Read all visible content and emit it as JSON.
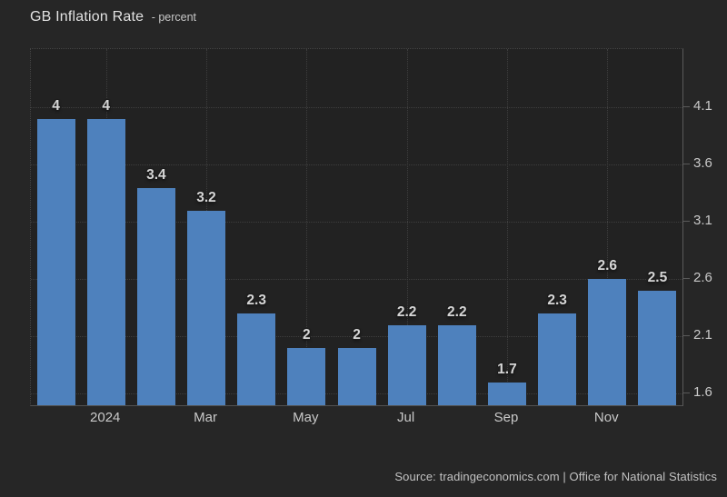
{
  "header": {
    "title": "GB Inflation Rate",
    "subtitle": "- percent"
  },
  "footer": {
    "source": "Source: tradingeconomics.com | Office for National Statistics"
  },
  "colors": {
    "page_bg": "#262626",
    "plot_bg": "#222222",
    "bar": "#4e81bd",
    "gridline": "#3e3e3e",
    "axis_line": "#5a5a5a",
    "tick_text": "#c9c9c9",
    "value_label_text": "#d6d6d6",
    "title_text": "#e2e2e2"
  },
  "chart_data": {
    "type": "bar",
    "title": "GB Inflation Rate",
    "unit": "percent",
    "values": [
      4,
      4,
      3.4,
      3.2,
      2.3,
      2,
      2,
      2.2,
      2.2,
      1.7,
      2.3,
      2.6,
      2.5
    ],
    "bar_labels": [
      "4",
      "4",
      "3.4",
      "3.2",
      "2.3",
      "2",
      "2",
      "2.2",
      "2.2",
      "1.7",
      "2.3",
      "2.6",
      "2.5"
    ],
    "x_tick_labels": [
      {
        "index": 1,
        "label": "2024"
      },
      {
        "index": 3,
        "label": "Mar"
      },
      {
        "index": 5,
        "label": "May"
      },
      {
        "index": 7,
        "label": "Jul"
      },
      {
        "index": 9,
        "label": "Sep"
      },
      {
        "index": 11,
        "label": "Nov"
      }
    ],
    "y_ticks": [
      1.6,
      2.1,
      2.6,
      3.1,
      3.6,
      4.1
    ],
    "y_tick_labels": [
      "1.6",
      "2.1",
      "2.6",
      "3.1",
      "3.6",
      "4.1"
    ],
    "ylim": [
      1.5,
      4.61
    ],
    "y_axis_side": "right",
    "grid": "dotted",
    "legend": "none"
  }
}
